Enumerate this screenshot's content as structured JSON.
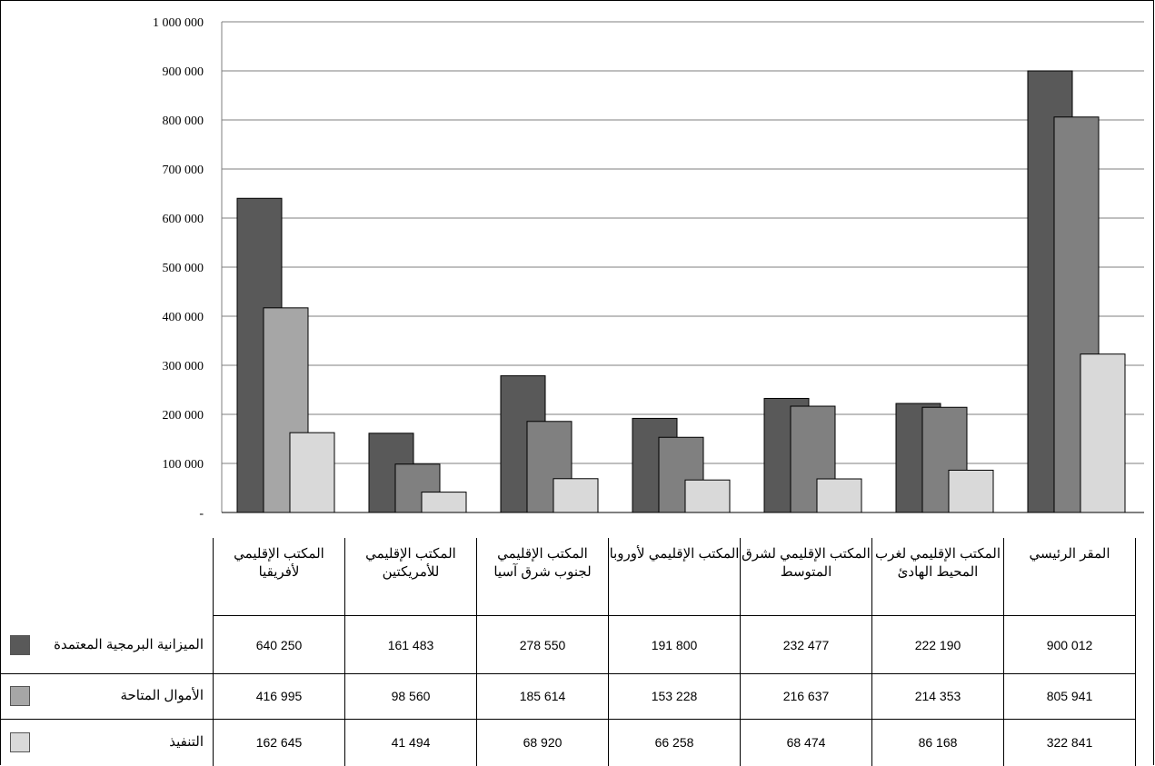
{
  "chart_data": {
    "type": "bar",
    "categories": [
      "المكتب الإقليمي لأفريقيا",
      "المكتب الإقليمي للأمريكتين",
      "المكتب الإقليمي لجنوب شرق آسيا",
      "المكتب الإقليمي لأوروبا",
      "المكتب الإقليمي لشرق المتوسط",
      "المكتب الإقليمي لغرب المحيط الهادئ",
      "المقر الرئيسي"
    ],
    "series": [
      {
        "name": "الميزانية البرمجية المعتمدة",
        "color": "#595959",
        "values": [
          640250,
          161483,
          278550,
          191800,
          232477,
          222190,
          900012
        ],
        "labels": [
          "640 250",
          "161 483",
          "278 550",
          "191 800",
          "232 477",
          "222 190",
          "900 012"
        ]
      },
      {
        "name": "الأموال المتاحة",
        "color": "#a6a6a6",
        "alt_color": "#808080",
        "values": [
          416995,
          98560,
          185614,
          153228,
          216637,
          214353,
          805941
        ],
        "labels": [
          "416 995",
          "98 560",
          "185 614",
          "153 228",
          "216 637",
          "214 353",
          "805 941"
        ]
      },
      {
        "name": "التنفيذ",
        "color": "#d9d9d9",
        "values": [
          162645,
          41494,
          68920,
          66258,
          68474,
          86168,
          322841
        ],
        "labels": [
          "162 645",
          "41 494",
          "68 920",
          "66 258",
          "68 474",
          "86 168",
          "322 841"
        ]
      }
    ],
    "y_ticks": [
      "-",
      "100 000",
      "200 000",
      "300 000",
      "400 000",
      "500 000",
      "600 000",
      "700 000",
      "800 000",
      "900 000",
      "1 000 000"
    ],
    "ylim": [
      0,
      1000000
    ],
    "grid": true,
    "legend": "data-table"
  }
}
